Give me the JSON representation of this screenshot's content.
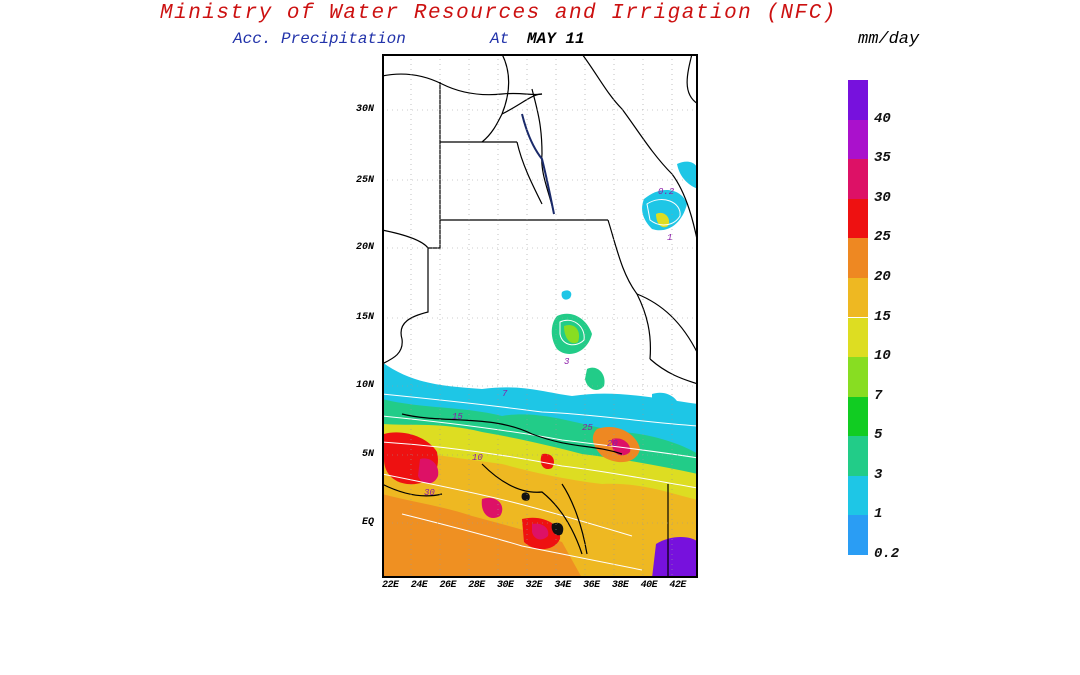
{
  "header": {
    "title": "Ministry of Water Resources and Irrigation (NFC)",
    "subtitle_product": "Acc. Precipitation",
    "subtitle_at": "At",
    "subtitle_date": "MAY 11",
    "units": "mm/day"
  },
  "map": {
    "lat_labels": [
      "30N",
      "25N",
      "20N",
      "15N",
      "10N",
      "5N",
      "EQ"
    ],
    "lon_labels": [
      "22E",
      "24E",
      "26E",
      "28E",
      "30E",
      "32E",
      "34E",
      "36E",
      "38E",
      "40E",
      "42E"
    ],
    "lat_range": [
      -3,
      33
    ],
    "lon_range": [
      22,
      43
    ],
    "contour_labels": [
      "0.2",
      "1",
      "3",
      "5",
      "7",
      "10",
      "15",
      "20",
      "25",
      "30"
    ]
  },
  "legend": {
    "levels": [
      {
        "label": "0.2",
        "color": "#2a9df4"
      },
      {
        "label": "1",
        "color": "#1ec6e6"
      },
      {
        "label": "3",
        "color": "#22cc88"
      },
      {
        "label": "5",
        "color": "#11cc22"
      },
      {
        "label": "7",
        "color": "#88dd22"
      },
      {
        "label": "10",
        "color": "#dddd22"
      },
      {
        "label": "15",
        "color": "#eeb822"
      },
      {
        "label": "20",
        "color": "#ee8822"
      },
      {
        "label": "25",
        "color": "#ee1111"
      },
      {
        "label": "30",
        "color": "#dd1166"
      },
      {
        "label": "35",
        "color": "#aa11cc"
      },
      {
        "label": "40",
        "color": "#7711dd"
      }
    ]
  }
}
